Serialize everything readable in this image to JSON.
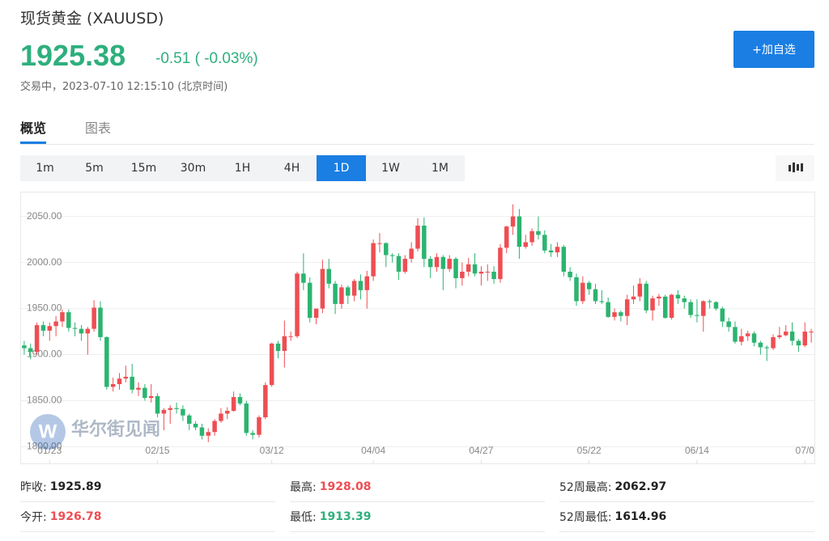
{
  "header": {
    "title": "现货黄金 (XAUUSD)",
    "price": "1925.38",
    "change": "-0.51 ( -0.03%)",
    "status": "交易中，2023-07-10 12:15:10 (北京时间)",
    "button": "+加自选"
  },
  "tabs": [
    "概览",
    "图表"
  ],
  "intervals": [
    "1m",
    "5m",
    "15m",
    "30m",
    "1H",
    "4H",
    "1D",
    "1W",
    "1M"
  ],
  "active_interval": 6,
  "chart_data": {
    "type": "candlestick",
    "watermark": "华尔街见闻",
    "up_color": "#ee4e53",
    "down_color": "#2bb470",
    "ylim": [
      1782,
      2076
    ],
    "yticks": [
      {
        "value": 1800,
        "label": "1800.00"
      },
      {
        "value": 1850,
        "label": "1850.00"
      },
      {
        "value": 1900,
        "label": "1900.00"
      },
      {
        "value": 1950,
        "label": "1950.00"
      },
      {
        "value": 2000,
        "label": "2000.00"
      },
      {
        "value": 2050,
        "label": "2050.00"
      }
    ],
    "xticks": [
      {
        "value": 4,
        "label": "01/23"
      },
      {
        "value": 21,
        "label": "02/15"
      },
      {
        "value": 39,
        "label": "03/12"
      },
      {
        "value": 55,
        "label": "04/04"
      },
      {
        "value": 72,
        "label": "04/27"
      },
      {
        "value": 89,
        "label": "05/22"
      },
      {
        "value": 106,
        "label": "06/14"
      },
      {
        "value": 123,
        "label": "07/0"
      }
    ],
    "grid": true,
    "ohlc": [
      [
        1910,
        1915,
        1900,
        1907
      ],
      [
        1907,
        1912,
        1895,
        1903
      ],
      [
        1903,
        1935,
        1900,
        1932
      ],
      [
        1932,
        1936,
        1920,
        1926
      ],
      [
        1926,
        1935,
        1915,
        1931
      ],
      [
        1931,
        1942,
        1920,
        1936
      ],
      [
        1936,
        1949,
        1930,
        1946
      ],
      [
        1946,
        1949,
        1925,
        1929
      ],
      [
        1929,
        1935,
        1920,
        1928
      ],
      [
        1928,
        1932,
        1915,
        1923
      ],
      [
        1923,
        1930,
        1900,
        1928
      ],
      [
        1928,
        1959,
        1925,
        1951
      ],
      [
        1951,
        1958,
        1915,
        1919
      ],
      [
        1919,
        1920,
        1862,
        1865
      ],
      [
        1865,
        1875,
        1860,
        1868
      ],
      [
        1868,
        1880,
        1862,
        1874
      ],
      [
        1874,
        1888,
        1870,
        1876
      ],
      [
        1876,
        1890,
        1858,
        1862
      ],
      [
        1862,
        1870,
        1855,
        1864
      ],
      [
        1864,
        1868,
        1850,
        1853
      ],
      [
        1853,
        1868,
        1848,
        1855
      ],
      [
        1855,
        1858,
        1832,
        1836
      ],
      [
        1836,
        1842,
        1818,
        1840
      ],
      [
        1840,
        1845,
        1825,
        1842
      ],
      [
        1842,
        1848,
        1836,
        1841
      ],
      [
        1841,
        1845,
        1828,
        1834
      ],
      [
        1834,
        1836,
        1818,
        1825
      ],
      [
        1825,
        1828,
        1818,
        1821
      ],
      [
        1821,
        1825,
        1808,
        1812
      ],
      [
        1812,
        1820,
        1805,
        1816
      ],
      [
        1816,
        1830,
        1812,
        1828
      ],
      [
        1828,
        1842,
        1826,
        1836
      ],
      [
        1836,
        1843,
        1830,
        1839
      ],
      [
        1839,
        1860,
        1838,
        1854
      ],
      [
        1854,
        1858,
        1845,
        1847
      ],
      [
        1847,
        1850,
        1812,
        1815
      ],
      [
        1815,
        1818,
        1808,
        1813
      ],
      [
        1813,
        1834,
        1810,
        1832
      ],
      [
        1832,
        1870,
        1830,
        1867
      ],
      [
        1867,
        1913,
        1865,
        1912
      ],
      [
        1912,
        1915,
        1896,
        1904
      ],
      [
        1904,
        1937,
        1886,
        1920
      ],
      [
        1920,
        1925,
        1915,
        1920
      ],
      [
        1920,
        1990,
        1918,
        1988
      ],
      [
        1988,
        2010,
        1970,
        1978
      ],
      [
        1978,
        1984,
        1935,
        1940
      ],
      [
        1940,
        1950,
        1933,
        1950
      ],
      [
        1950,
        2003,
        1945,
        1993
      ],
      [
        1993,
        2004,
        1972,
        1977
      ],
      [
        1977,
        1980,
        1944,
        1955
      ],
      [
        1955,
        1976,
        1950,
        1973
      ],
      [
        1973,
        1975,
        1955,
        1964
      ],
      [
        1964,
        1982,
        1958,
        1980
      ],
      [
        1980,
        1987,
        1960,
        1970
      ],
      [
        1970,
        1991,
        1950,
        1985
      ],
      [
        1985,
        2025,
        1980,
        2021
      ],
      [
        2021,
        2032,
        2011,
        2021
      ],
      [
        2021,
        2022,
        1995,
        2008
      ],
      [
        2008,
        2010,
        2000,
        2007
      ],
      [
        2007,
        2010,
        1981,
        1990
      ],
      [
        1990,
        2008,
        1988,
        2004
      ],
      [
        2004,
        2022,
        2000,
        2015
      ],
      [
        2015,
        2048,
        2012,
        2040
      ],
      [
        2040,
        2049,
        1995,
        2004
      ],
      [
        2004,
        2007,
        1983,
        1995
      ],
      [
        1995,
        2010,
        1990,
        2006
      ],
      [
        2006,
        2008,
        1970,
        1993
      ],
      [
        1993,
        2008,
        1990,
        2004
      ],
      [
        2004,
        2006,
        1972,
        1983
      ],
      [
        1983,
        2000,
        1975,
        1990
      ],
      [
        1990,
        2005,
        1985,
        1998
      ],
      [
        1998,
        2010,
        1985,
        1988
      ],
      [
        1988,
        1996,
        1975,
        1990
      ],
      [
        1990,
        1998,
        1980,
        1990
      ],
      [
        1990,
        1996,
        1977,
        1982
      ],
      [
        1982,
        2020,
        1978,
        2016
      ],
      [
        2016,
        2040,
        2010,
        2039
      ],
      [
        2039,
        2063,
        2030,
        2050
      ],
      [
        2050,
        2058,
        2004,
        2017
      ],
      [
        2017,
        2030,
        2015,
        2022
      ],
      [
        2022,
        2037,
        2018,
        2034
      ],
      [
        2034,
        2050,
        2025,
        2030
      ],
      [
        2030,
        2035,
        2010,
        2013
      ],
      [
        2013,
        2020,
        2006,
        2011
      ],
      [
        2011,
        2022,
        2006,
        2017
      ],
      [
        2017,
        2019,
        1985,
        1990
      ],
      [
        1990,
        1995,
        1980,
        1984
      ],
      [
        1984,
        1988,
        1953,
        1958
      ],
      [
        1958,
        1985,
        1955,
        1978
      ],
      [
        1978,
        1980,
        1965,
        1971
      ],
      [
        1971,
        1977,
        1955,
        1958
      ],
      [
        1958,
        1970,
        1955,
        1957
      ],
      [
        1957,
        1962,
        1940,
        1941
      ],
      [
        1941,
        1950,
        1937,
        1946
      ],
      [
        1946,
        1948,
        1936,
        1942
      ],
      [
        1942,
        1965,
        1932,
        1960
      ],
      [
        1960,
        1975,
        1955,
        1963
      ],
      [
        1963,
        1983,
        1958,
        1977
      ],
      [
        1977,
        1980,
        1945,
        1948
      ],
      [
        1948,
        1964,
        1937,
        1961
      ],
      [
        1961,
        1966,
        1953,
        1963
      ],
      [
        1963,
        1965,
        1939,
        1940
      ],
      [
        1940,
        1966,
        1938,
        1965
      ],
      [
        1965,
        1970,
        1955,
        1961
      ],
      [
        1961,
        1964,
        1950,
        1957
      ],
      [
        1957,
        1960,
        1940,
        1943
      ],
      [
        1943,
        1960,
        1935,
        1942
      ],
      [
        1942,
        1959,
        1925,
        1958
      ],
      [
        1958,
        1960,
        1950,
        1957
      ],
      [
        1957,
        1958,
        1948,
        1950
      ],
      [
        1950,
        1952,
        1930,
        1936
      ],
      [
        1936,
        1940,
        1925,
        1930
      ],
      [
        1930,
        1936,
        1912,
        1914
      ],
      [
        1914,
        1928,
        1910,
        1920
      ],
      [
        1920,
        1926,
        1915,
        1923
      ],
      [
        1923,
        1925,
        1909,
        1913
      ],
      [
        1913,
        1915,
        1900,
        1908
      ],
      [
        1908,
        1910,
        1893,
        1907
      ],
      [
        1907,
        1922,
        1905,
        1919
      ],
      [
        1919,
        1930,
        1917,
        1921
      ],
      [
        1921,
        1932,
        1920,
        1925
      ],
      [
        1925,
        1935,
        1910,
        1915
      ],
      [
        1915,
        1917,
        1903,
        1910
      ],
      [
        1910,
        1935,
        1908,
        1925
      ],
      [
        1925,
        1928,
        1913,
        1925
      ]
    ]
  },
  "stats": [
    [
      {
        "label": "昨收:",
        "value": "1925.89"
      },
      {
        "label": "最高:",
        "value": "1928.08"
      },
      {
        "label": "52周最高:",
        "value": "2062.97"
      }
    ],
    [
      {
        "label": "今开:",
        "value": "1926.78"
      },
      {
        "label": "最低:",
        "value": "1913.39"
      },
      {
        "label": "52周最低:",
        "value": "1614.96"
      }
    ]
  ]
}
